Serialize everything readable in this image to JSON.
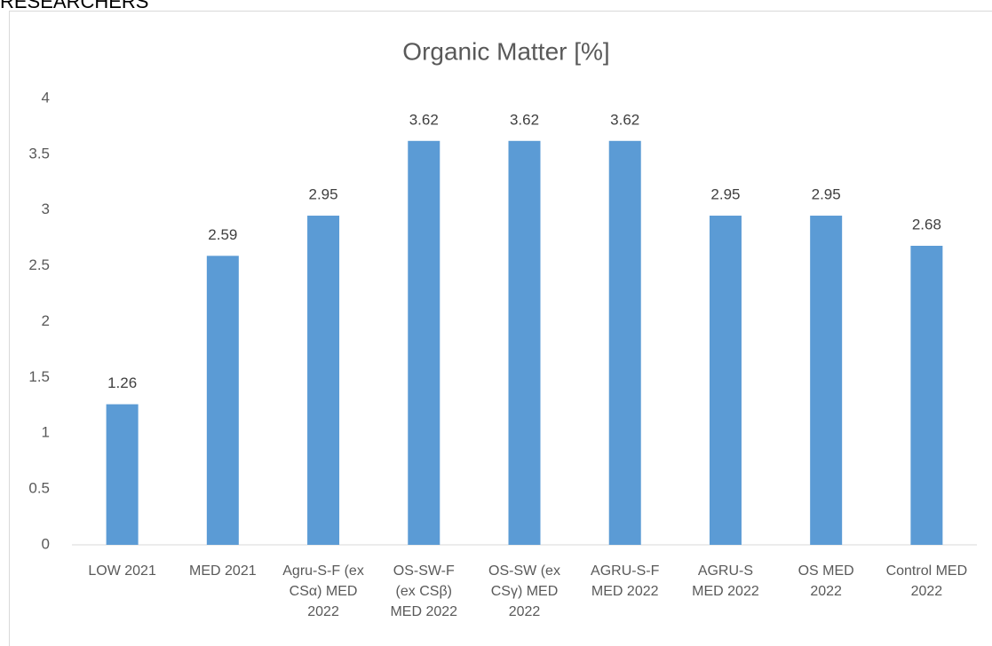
{
  "page_text": "RESEARCHERS",
  "chart_data": {
    "type": "bar",
    "title": "Organic Matter [%]",
    "categories": [
      "LOW 2021",
      "MED 2021",
      "Agru-S-F (ex CSα) MED 2022",
      "OS-SW-F (ex CSβ) MED 2022",
      "OS-SW (ex CSγ) MED 2022",
      "AGRU-S-F MED 2022",
      "AGRU-S MED 2022",
      "OS MED 2022",
      "Control MED 2022"
    ],
    "values": [
      1.26,
      2.59,
      2.95,
      3.62,
      3.62,
      3.62,
      2.95,
      2.95,
      2.68
    ],
    "color": "#5b9bd5",
    "ylim": [
      0,
      4
    ],
    "yticks": [
      0,
      0.5,
      1,
      1.5,
      2,
      2.5,
      3,
      3.5,
      4
    ],
    "grid": false
  }
}
